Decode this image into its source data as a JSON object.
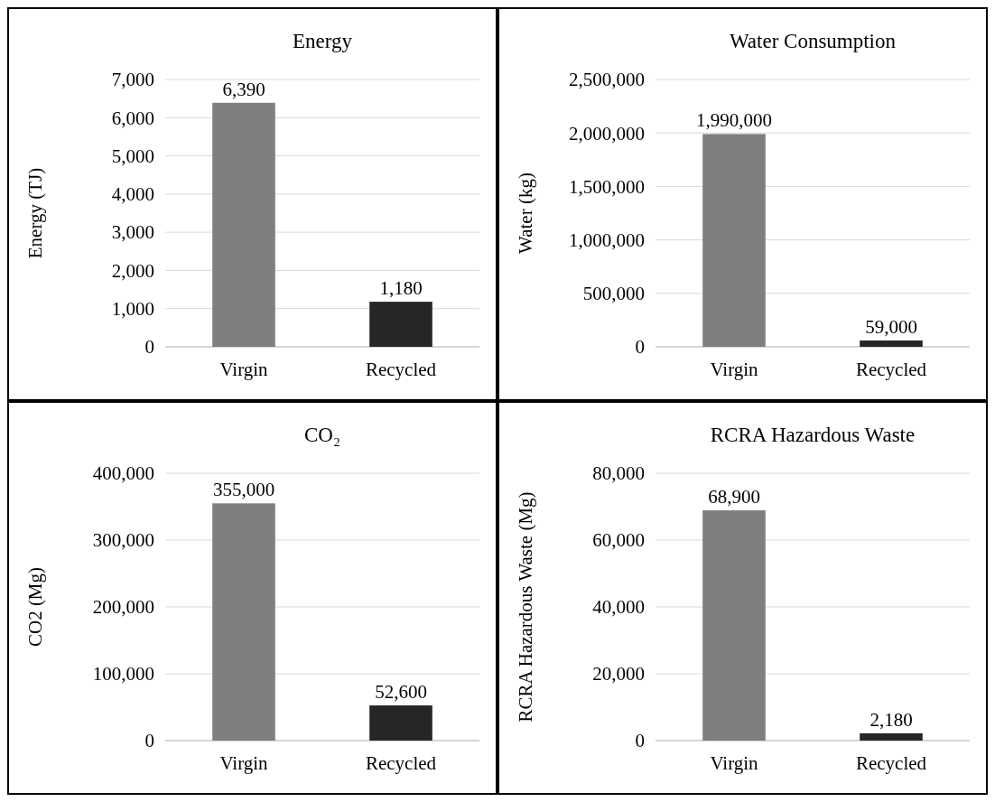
{
  "chart_data": [
    {
      "type": "bar",
      "title": "Energy",
      "ylabel": "Energy (TJ)",
      "categories": [
        "Virgin",
        "Recycled"
      ],
      "values": [
        6390,
        1180
      ],
      "colors": [
        "#7f7f7f",
        "#262626"
      ],
      "value_labels": [
        "6,390",
        "1,180"
      ],
      "ylim": [
        0,
        7000
      ],
      "yticks": [
        {
          "value": 0,
          "label": "0"
        },
        {
          "value": 1000,
          "label": "1,000"
        },
        {
          "value": 2000,
          "label": "2,000"
        },
        {
          "value": 3000,
          "label": "3,000"
        },
        {
          "value": 4000,
          "label": "4,000"
        },
        {
          "value": 5000,
          "label": "5,000"
        },
        {
          "value": 6000,
          "label": "6,000"
        },
        {
          "value": 7000,
          "label": "7,000"
        }
      ],
      "grid": "y"
    },
    {
      "type": "bar",
      "title": "Water Consumption",
      "ylabel": "Water (kg)",
      "categories": [
        "Virgin",
        "Recycled"
      ],
      "values": [
        1990000,
        59000
      ],
      "colors": [
        "#7f7f7f",
        "#262626"
      ],
      "value_labels": [
        "1,990,000",
        "59,000"
      ],
      "ylim": [
        0,
        2500000
      ],
      "yticks": [
        {
          "value": 0,
          "label": "0"
        },
        {
          "value": 500000,
          "label": "500,000"
        },
        {
          "value": 1000000,
          "label": "1,000,000"
        },
        {
          "value": 1500000,
          "label": "1,500,000"
        },
        {
          "value": 2000000,
          "label": "2,000,000"
        },
        {
          "value": 2500000,
          "label": "2,500,000"
        }
      ],
      "grid": "y"
    },
    {
      "type": "bar",
      "title": "CO₂",
      "ylabel": "CO2 (Mg)",
      "categories": [
        "Virgin",
        "Recycled"
      ],
      "values": [
        355000,
        52600
      ],
      "colors": [
        "#7f7f7f",
        "#262626"
      ],
      "value_labels": [
        "355,000",
        "52,600"
      ],
      "ylim": [
        0,
        400000
      ],
      "yticks": [
        {
          "value": 0,
          "label": "0"
        },
        {
          "value": 100000,
          "label": "100,000"
        },
        {
          "value": 200000,
          "label": "200,000"
        },
        {
          "value": 300000,
          "label": "300,000"
        },
        {
          "value": 400000,
          "label": "400,000"
        }
      ],
      "grid": "y"
    },
    {
      "type": "bar",
      "title": "RCRA Hazardous Waste",
      "ylabel": "RCRA Hazardous Waste (Mg)",
      "categories": [
        "Virgin",
        "Recycled"
      ],
      "values": [
        68900,
        2180
      ],
      "colors": [
        "#7f7f7f",
        "#262626"
      ],
      "value_labels": [
        "68,900",
        "2,180"
      ],
      "ylim": [
        0,
        80000
      ],
      "yticks": [
        {
          "value": 0,
          "label": "0"
        },
        {
          "value": 20000,
          "label": "20,000"
        },
        {
          "value": 40000,
          "label": "40,000"
        },
        {
          "value": 60000,
          "label": "60,000"
        },
        {
          "value": 80000,
          "label": "80,000"
        }
      ],
      "grid": "y"
    }
  ]
}
